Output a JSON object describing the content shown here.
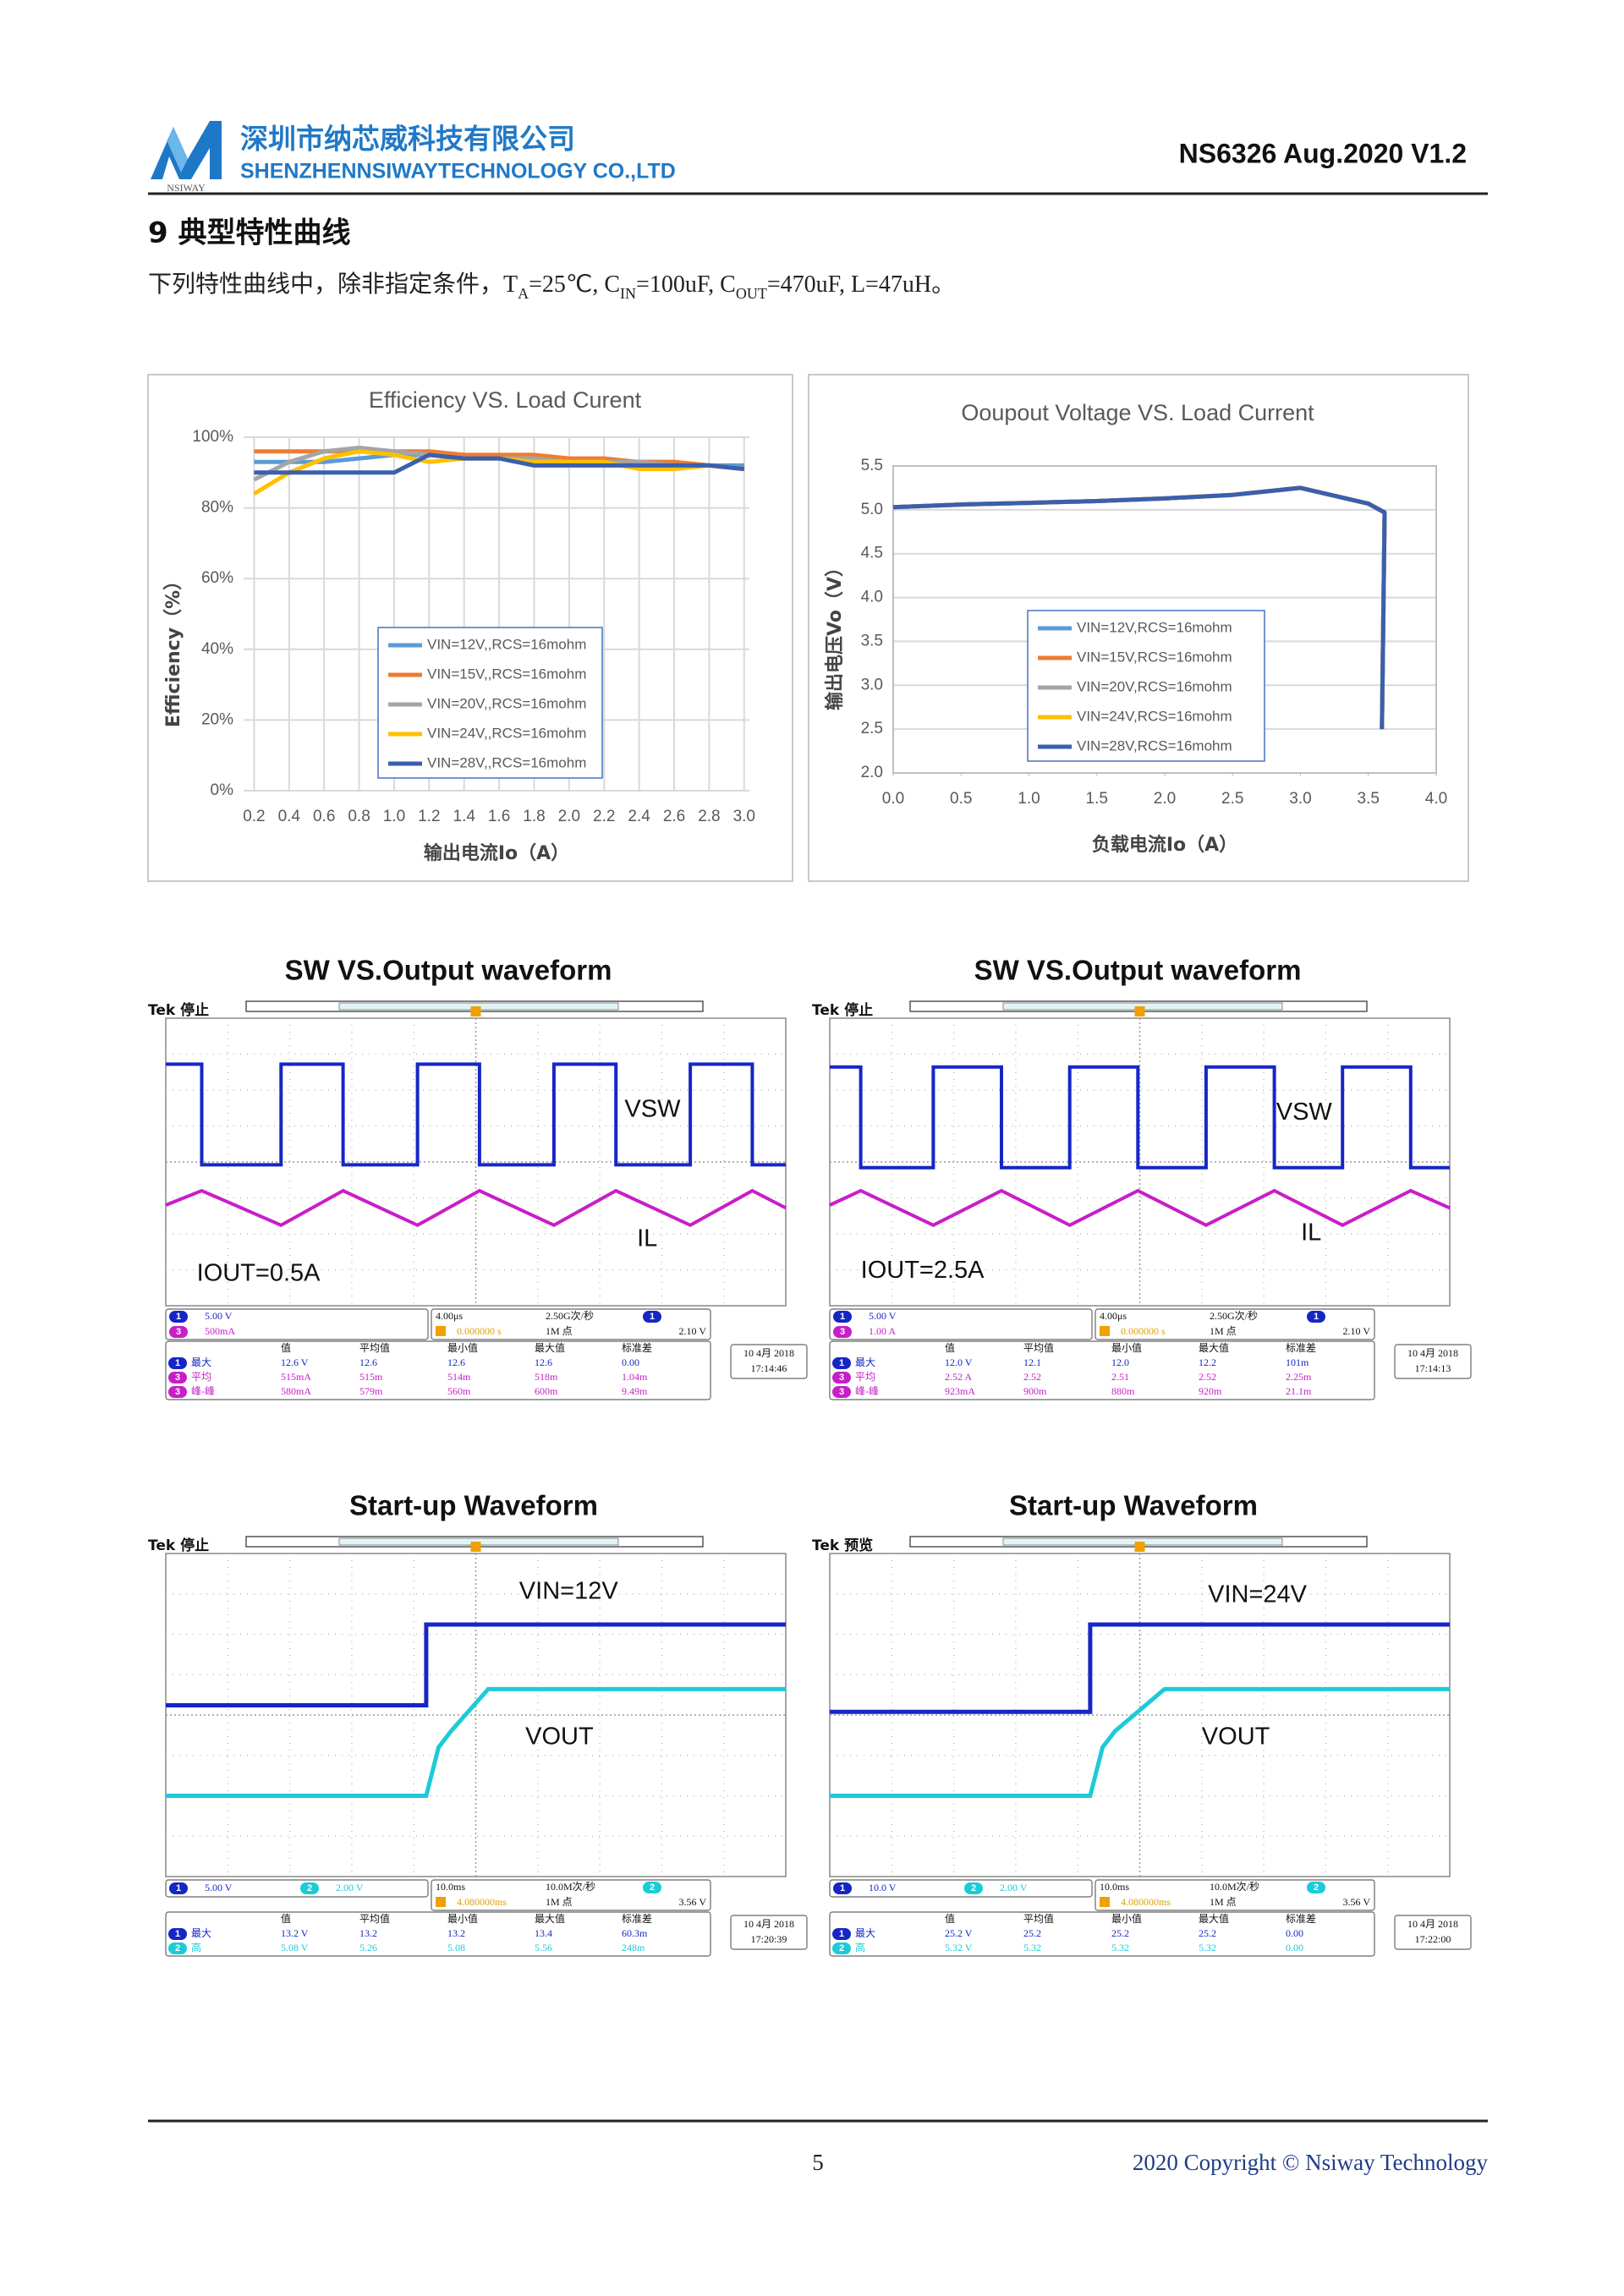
{
  "header": {
    "company_cn": "深圳市纳芯威科技有限公司",
    "company_en": "SHENZHENNSIWAYTECHNOLOGY CO.,LTD",
    "logo_text": "NSIWAY",
    "doc_id": "NS6326 Aug.2020 V1.2"
  },
  "section": {
    "title": "9 典型特性曲线",
    "intro": [
      "下列特性曲线中，除非指定条件，T",
      "A",
      "=25℃, C",
      "IN",
      "=100uF, C",
      "OUT",
      "=470uF, L=47uH。"
    ]
  },
  "chart_data": [
    {
      "type": "line",
      "title": "Efficiency VS. Load Curent",
      "x_label": "输出电流Io（A）",
      "y_label": "Efficiency（%）",
      "x": [
        0.2,
        0.4,
        0.6,
        0.8,
        1.0,
        1.2,
        1.4,
        1.6,
        1.8,
        2.0,
        2.2,
        2.4,
        2.6,
        2.8,
        3.0
      ],
      "xlim": [
        0.14,
        3.03
      ],
      "xticks": [
        0.2,
        0.4,
        0.6,
        0.8,
        {
          "value": 1,
          "label": "1.0"
        },
        1.2,
        1.4,
        1.6,
        1.8,
        {
          "value": 2,
          "label": "2.0"
        },
        2.2,
        2.4,
        2.6,
        2.8,
        {
          "value": 3,
          "label": "3.0"
        }
      ],
      "ylim": [
        0,
        100
      ],
      "yticks": [
        {
          "value": 0,
          "label": "0%"
        },
        {
          "value": 20,
          "label": "20%"
        },
        {
          "value": 40,
          "label": "40%"
        },
        {
          "value": 60,
          "label": "60%"
        },
        {
          "value": 80,
          "label": "80%"
        },
        {
          "value": 100,
          "label": "100%"
        }
      ],
      "grid": true,
      "x_grid": true,
      "plot_border": false,
      "legend": "bottom",
      "series": [
        {
          "name": "VIN=12V,,RCS=16mohm",
          "color": "#5b9bd5",
          "values": [
            93,
            93,
            93,
            94,
            95,
            95,
            95,
            94,
            94,
            93,
            93,
            93,
            93,
            92,
            92
          ]
        },
        {
          "name": "VIN=15V,,RCS=16mohm",
          "color": "#ed7d31",
          "values": [
            96,
            96,
            96,
            96,
            96,
            96,
            95,
            95,
            95,
            94,
            94,
            93,
            93,
            92,
            91
          ]
        },
        {
          "name": "VIN=20V,,RCS=16mohm",
          "color": "#a5a5a5",
          "values": [
            88,
            93,
            96,
            97,
            96,
            95,
            94,
            94,
            94,
            93,
            93,
            93,
            92,
            92,
            91
          ]
        },
        {
          "name": "VIN=24V,,RCS=16mohm",
          "color": "#ffc000",
          "values": [
            84,
            90,
            94,
            96,
            95,
            93,
            94,
            94,
            93,
            93,
            93,
            91,
            91,
            92,
            91
          ]
        },
        {
          "name": "VIN=28V,,RCS=16mohm",
          "color": "#3a5fae",
          "values": [
            90,
            90,
            90,
            90,
            90,
            95,
            94,
            94,
            92,
            92,
            92,
            92,
            92,
            92,
            91
          ]
        }
      ]
    },
    {
      "type": "line",
      "title": "Ooupout Voltage VS. Load Current",
      "x_label": "负载电流Io（A）",
      "y_label": "输出电压Vo（V）",
      "x": [
        0,
        0.5,
        1,
        1.5,
        2,
        2.5,
        3,
        3.5,
        3.62,
        3.6
      ],
      "xlim": [
        0,
        4
      ],
      "xticks": [
        {
          "value": 0,
          "label": "0.0"
        },
        0.5,
        {
          "value": 1,
          "label": "1.0"
        },
        1.5,
        {
          "value": 2,
          "label": "2.0"
        },
        2.5,
        {
          "value": 3,
          "label": "3.0"
        },
        3.5,
        {
          "value": 4,
          "label": "4.0"
        }
      ],
      "ylim": [
        2,
        5.5
      ],
      "yticks": [
        {
          "value": 2,
          "label": "2.0"
        },
        2.5,
        {
          "value": 3,
          "label": "3.0"
        },
        3.5,
        {
          "value": 4,
          "label": "4.0"
        },
        4.5,
        {
          "value": 5,
          "label": "5.0"
        },
        5.5
      ],
      "grid": true,
      "x_grid": false,
      "plot_border": true,
      "legend": "right",
      "series": [
        {
          "name": "VIN=12V,RCS=16mohm",
          "color": "#5b9bd5",
          "values": [
            5.03,
            5.06,
            5.08,
            5.1,
            5.13,
            5.17,
            5.25,
            5.07,
            4.97,
            2.5
          ]
        },
        {
          "name": "VIN=15V,RCS=16mohm",
          "color": "#ed7d31",
          "values": [
            5.03,
            5.06,
            5.08,
            5.1,
            5.13,
            5.17,
            5.25,
            5.07,
            4.97,
            2.5
          ]
        },
        {
          "name": "VIN=20V,RCS=16mohm",
          "color": "#a5a5a5",
          "values": [
            5.03,
            5.06,
            5.08,
            5.1,
            5.13,
            5.17,
            5.25,
            5.07,
            4.97,
            2.5
          ]
        },
        {
          "name": "VIN=24V,RCS=16mohm",
          "color": "#ffc000",
          "values": [
            5.03,
            5.06,
            5.08,
            5.1,
            5.13,
            5.17,
            5.25,
            5.07,
            4.97,
            2.5
          ]
        },
        {
          "name": "VIN=28V,RCS=16mohm",
          "color": "#3a5fae",
          "values": [
            5.03,
            5.06,
            5.08,
            5.1,
            5.13,
            5.17,
            5.25,
            5.07,
            4.97,
            2.5
          ]
        }
      ]
    }
  ],
  "scopes": [
    {
      "heading": "SW VS.Output waveform",
      "status": "Tek 停止",
      "trace_labels": [
        "VSW",
        "IL",
        "IOUT=0.5A"
      ],
      "channels": [
        {
          "ch": "1",
          "scale": "5.00 V"
        },
        {
          "ch": "3",
          "scale": "500mA"
        }
      ],
      "timebase": "4.00μs",
      "trig_delay": "0.000000 s",
      "sample_rate": "2.50G次/秒",
      "points": "1M 点",
      "trig_ch": "1",
      "trig_level": "2.10 V",
      "meas_header": [
        "值",
        "平均值",
        "最小值",
        "最大值",
        "标准差"
      ],
      "meas_rows": [
        {
          "ch": "1",
          "name": "最大",
          "cells": [
            "12.6 V",
            "12.6",
            "12.6",
            "12.6",
            "0.00"
          ]
        },
        {
          "ch": "3",
          "name": "平均",
          "cells": [
            "515mA",
            "515m",
            "514m",
            "518m",
            "1.04m"
          ]
        },
        {
          "ch": "3",
          "name": "峰-峰",
          "cells": [
            "580mA",
            "579m",
            "560m",
            "600m",
            "9.49m"
          ]
        }
      ],
      "date": "10 4月 2018",
      "time": "17:14:46"
    },
    {
      "heading": "SW VS.Output waveform",
      "status": "Tek 停止",
      "trace_labels": [
        "VSW",
        "IL",
        "IOUT=2.5A"
      ],
      "channels": [
        {
          "ch": "1",
          "scale": "5.00 V"
        },
        {
          "ch": "3",
          "scale": "1.00 A"
        }
      ],
      "timebase": "4.00μs",
      "trig_delay": "0.000000 s",
      "sample_rate": "2.50G次/秒",
      "points": "1M 点",
      "trig_ch": "1",
      "trig_level": "2.10 V",
      "meas_header": [
        "值",
        "平均值",
        "最小值",
        "最大值",
        "标准差"
      ],
      "meas_rows": [
        {
          "ch": "1",
          "name": "最大",
          "cells": [
            "12.0 V",
            "12.1",
            "12.0",
            "12.2",
            "101m"
          ]
        },
        {
          "ch": "3",
          "name": "平均",
          "cells": [
            "2.52 A",
            "2.52",
            "2.51",
            "2.52",
            "2.25m"
          ]
        },
        {
          "ch": "3",
          "name": "峰-峰",
          "cells": [
            "923mA",
            "900m",
            "880m",
            "920m",
            "21.1m"
          ]
        }
      ],
      "date": "10 4月 2018",
      "time": "17:14:13"
    },
    {
      "heading": "Start-up Waveform",
      "status": "Tek 停止",
      "trace_labels": [
        "VIN=12V",
        "VOUT"
      ],
      "channels": [
        {
          "ch": "1",
          "scale": "5.00 V"
        },
        {
          "ch": "2",
          "scale": "2.00 V"
        }
      ],
      "timebase": "10.0ms",
      "trig_delay": "4.080000ms",
      "sample_rate": "10.0M次/秒",
      "points": "1M 点",
      "trig_ch": "2",
      "trig_level": "3.56 V",
      "meas_header": [
        "值",
        "平均值",
        "最小值",
        "最大值",
        "标准差"
      ],
      "meas_rows": [
        {
          "ch": "1",
          "name": "最大",
          "cells": [
            "13.2 V",
            "13.2",
            "13.2",
            "13.4",
            "60.3m"
          ]
        },
        {
          "ch": "2",
          "name": "高",
          "cells": [
            "5.08 V",
            "5.26",
            "5.08",
            "5.56",
            "248m"
          ]
        }
      ],
      "date": "10 4月 2018",
      "time": "17:20:39"
    },
    {
      "heading": "Start-up Waveform",
      "status": "Tek 预览",
      "trace_labels": [
        "VIN=24V",
        "VOUT"
      ],
      "channels": [
        {
          "ch": "1",
          "scale": "10.0 V"
        },
        {
          "ch": "2",
          "scale": "2.00 V"
        }
      ],
      "timebase": "10.0ms",
      "trig_delay": "4.080000ms",
      "sample_rate": "10.0M次/秒",
      "points": "1M 点",
      "trig_ch": "2",
      "trig_level": "3.56 V",
      "meas_header": [
        "值",
        "平均值",
        "最小值",
        "最大值",
        "标准差"
      ],
      "meas_rows": [
        {
          "ch": "1",
          "name": "最大",
          "cells": [
            "25.2 V",
            "25.2",
            "25.2",
            "25.2",
            "0.00"
          ]
        },
        {
          "ch": "2",
          "name": "高",
          "cells": [
            "5.32 V",
            "5.32",
            "5.32",
            "5.32",
            "0.00"
          ]
        }
      ],
      "date": "10 4月 2018",
      "time": "17:22:00"
    }
  ],
  "footer": {
    "page": "5",
    "copyright": "2020 Copyright © Nsiway Technology"
  }
}
